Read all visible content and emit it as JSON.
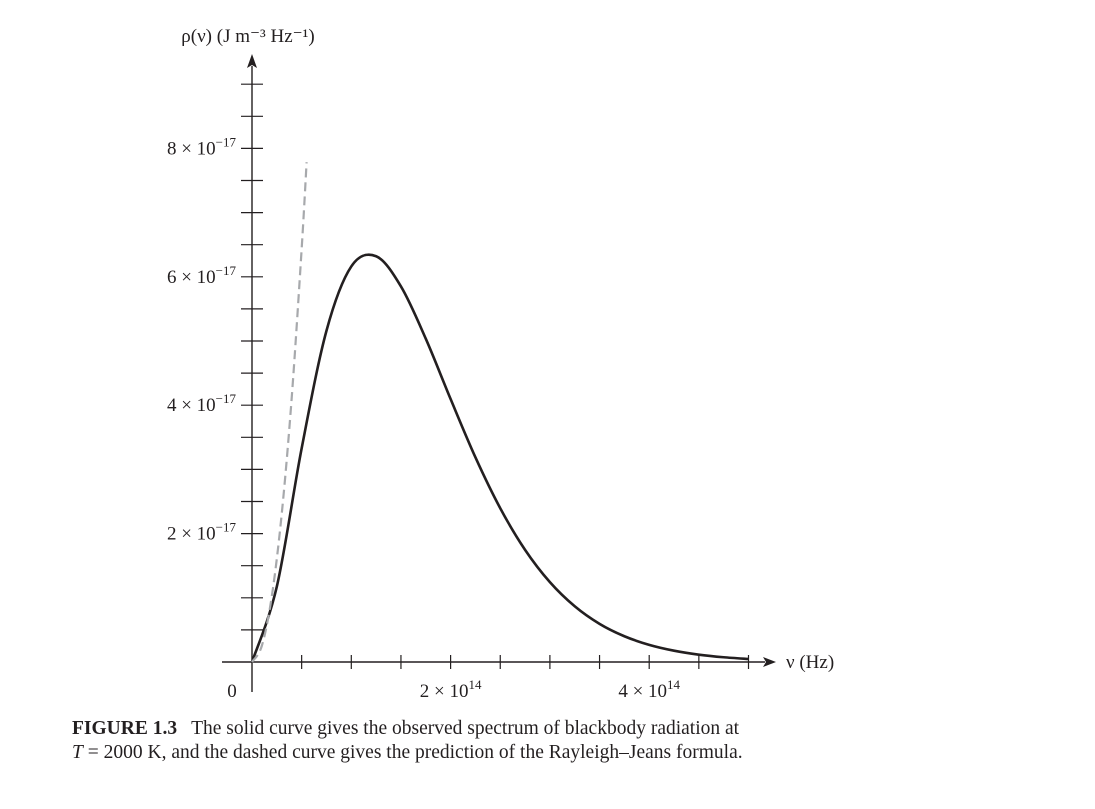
{
  "chart_data": {
    "type": "line",
    "ylabel": "ρ(ν) (J m⁻³ Hz⁻¹)",
    "xlabel": "ν (Hz)",
    "x_unit_exp": 14,
    "y_unit_exp": -17,
    "xlim": [
      0,
      5.2
    ],
    "ylim": [
      0,
      9.3
    ],
    "x_tick_labels": [
      {
        "value": 0,
        "label": "0"
      },
      {
        "value": 2,
        "label": "2 × 10",
        "exp": "14"
      },
      {
        "value": 4,
        "label": "4 × 10",
        "exp": "14"
      }
    ],
    "y_tick_labels": [
      {
        "value": 2,
        "label": "2 × 10",
        "exp": "−17"
      },
      {
        "value": 4,
        "label": "4 × 10",
        "exp": "−17"
      },
      {
        "value": 6,
        "label": "6 × 10",
        "exp": "−17"
      },
      {
        "value": 8,
        "label": "8 × 10",
        "exp": "−17"
      }
    ],
    "minor_tick_step_x": 0.5,
    "minor_tick_step_y": 0.5,
    "grid": false,
    "series": [
      {
        "style": "solid",
        "color": "#231f20",
        "x": [
          0,
          0.25,
          0.5,
          0.75,
          1.0,
          1.25,
          1.5,
          1.75,
          2.0,
          2.25,
          2.5,
          2.75,
          3.0,
          3.25,
          3.5,
          3.75,
          4.0,
          4.25,
          4.5,
          4.75,
          5.0
        ],
        "y": [
          0,
          1.175,
          3.328,
          5.16,
          6.161,
          6.32,
          5.85,
          5.036,
          4.096,
          3.188,
          2.395,
          1.747,
          1.244,
          0.868,
          0.594,
          0.401,
          0.267,
          0.176,
          0.1145,
          0.0739,
          0.0473
        ]
      },
      {
        "style": "dashed",
        "color": "#a7a9ac",
        "x": [
          0,
          0.1,
          0.2,
          0.3,
          0.4,
          0.5,
          0.55
        ],
        "y": [
          0,
          0.257,
          1.03,
          2.317,
          4.118,
          6.435,
          7.786
        ]
      }
    ]
  },
  "caption": {
    "label": "FIGURE 1.3",
    "text_1": "The solid curve gives the observed spectrum of blackbody radiation at",
    "T_symbol": "T",
    "text_2": " = 2000 K, and the dashed curve gives the prediction of the Rayleigh–Jeans formula."
  }
}
